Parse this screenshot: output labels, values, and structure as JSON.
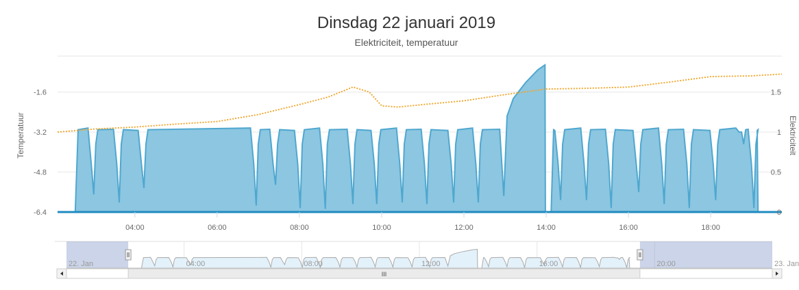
{
  "chart_data": {
    "type": "area",
    "title": "Dinsdag 22 januari 2019",
    "subtitle": "Elektriciteit, temperatuur",
    "xlabel": "",
    "x_unit": "hour of day",
    "xlim": [
      2.12,
      19.73
    ],
    "x_ticks": [
      {
        "h": 4,
        "label": "04:00"
      },
      {
        "h": 6,
        "label": "06:00"
      },
      {
        "h": 8,
        "label": "08:00"
      },
      {
        "h": 10,
        "label": "10:00"
      },
      {
        "h": 12,
        "label": "12:00"
      },
      {
        "h": 14,
        "label": "14:00"
      },
      {
        "h": 16,
        "label": "16:00"
      },
      {
        "h": 18,
        "label": "18:00"
      }
    ],
    "y_left": {
      "label": "Temperatuur",
      "ticks": [
        "-1.6",
        "-3.2",
        "-4.8",
        "-6.4"
      ],
      "values": [
        -1.6,
        -3.2,
        -4.8,
        -6.4
      ],
      "ylim": [
        -6.4,
        -0.16
      ]
    },
    "y_right": {
      "label": "Elektriciteit",
      "ticks": [
        "1.5",
        "1",
        "0.5",
        "0"
      ],
      "values": [
        1.5,
        1,
        0.5,
        0
      ],
      "ylim": [
        0,
        1.95
      ]
    },
    "grid": true,
    "series": [
      {
        "name": "Elektriciteit",
        "axis": "right",
        "type": "area",
        "color": "#4fa7cf",
        "fill": "#86c3df",
        "start": 2.55,
        "end": 19.15,
        "plateau": 1.05,
        "dips": [
          [
            3.0,
            0.22
          ],
          [
            3.62,
            0.12
          ],
          [
            4.22,
            0.3
          ],
          [
            6.95,
            0.08
          ],
          [
            7.42,
            0.34
          ],
          [
            8.02,
            0.05
          ],
          [
            8.63,
            0.04
          ],
          [
            9.3,
            0.1
          ],
          [
            9.88,
            0.1
          ],
          [
            10.5,
            0.12
          ],
          [
            11.1,
            0.1
          ],
          [
            11.75,
            0.12
          ],
          [
            12.35,
            0.12
          ],
          [
            14.35,
            0.15
          ],
          [
            14.98,
            0.15
          ],
          [
            15.58,
            0.05
          ],
          [
            16.25,
            0.25
          ],
          [
            16.87,
            0.1
          ],
          [
            17.48,
            0.05
          ],
          [
            18.12,
            0.15
          ],
          [
            18.75,
            1.0
          ],
          [
            19.05,
            0.05
          ]
        ],
        "ramp": [
          [
            12.97,
            0.2
          ],
          [
            13.05,
            1.2
          ],
          [
            13.2,
            1.42
          ],
          [
            13.5,
            1.62
          ],
          [
            13.8,
            1.78
          ],
          [
            13.97,
            1.84
          ]
        ],
        "gap_after_ramp": [
          13.98,
          14.12
        ]
      },
      {
        "name": "Temperatuur",
        "axis": "left",
        "type": "line",
        "dash": "dotted",
        "color": "#f0a830",
        "points": [
          [
            2.12,
            -3.2
          ],
          [
            3,
            -3.08
          ],
          [
            4,
            -3.0
          ],
          [
            5,
            -2.88
          ],
          [
            6,
            -2.78
          ],
          [
            7,
            -2.5
          ],
          [
            8,
            -2.1
          ],
          [
            8.7,
            -1.8
          ],
          [
            9.3,
            -1.4
          ],
          [
            9.7,
            -1.6
          ],
          [
            10,
            -2.15
          ],
          [
            10.4,
            -2.2
          ],
          [
            11,
            -2.1
          ],
          [
            12,
            -1.95
          ],
          [
            13,
            -1.7
          ],
          [
            14,
            -1.48
          ],
          [
            15,
            -1.45
          ],
          [
            16,
            -1.4
          ],
          [
            17,
            -1.2
          ],
          [
            18,
            -0.98
          ],
          [
            19,
            -0.95
          ],
          [
            19.73,
            -0.88
          ]
        ]
      }
    ],
    "navigator": {
      "xlim": [
        0,
        24
      ],
      "selected": [
        2.1,
        19.5
      ],
      "labels": [
        {
          "h": 0,
          "label": "22. Jan"
        },
        {
          "h": 4,
          "label": "04:00"
        },
        {
          "h": 8,
          "label": "08:00"
        },
        {
          "h": 12,
          "label": "12:00"
        },
        {
          "h": 16,
          "label": "16:00"
        },
        {
          "h": 20,
          "label": "20:00"
        },
        {
          "h": 24,
          "label": "23. Jan"
        }
      ],
      "scrollbar_grip": "III"
    }
  }
}
